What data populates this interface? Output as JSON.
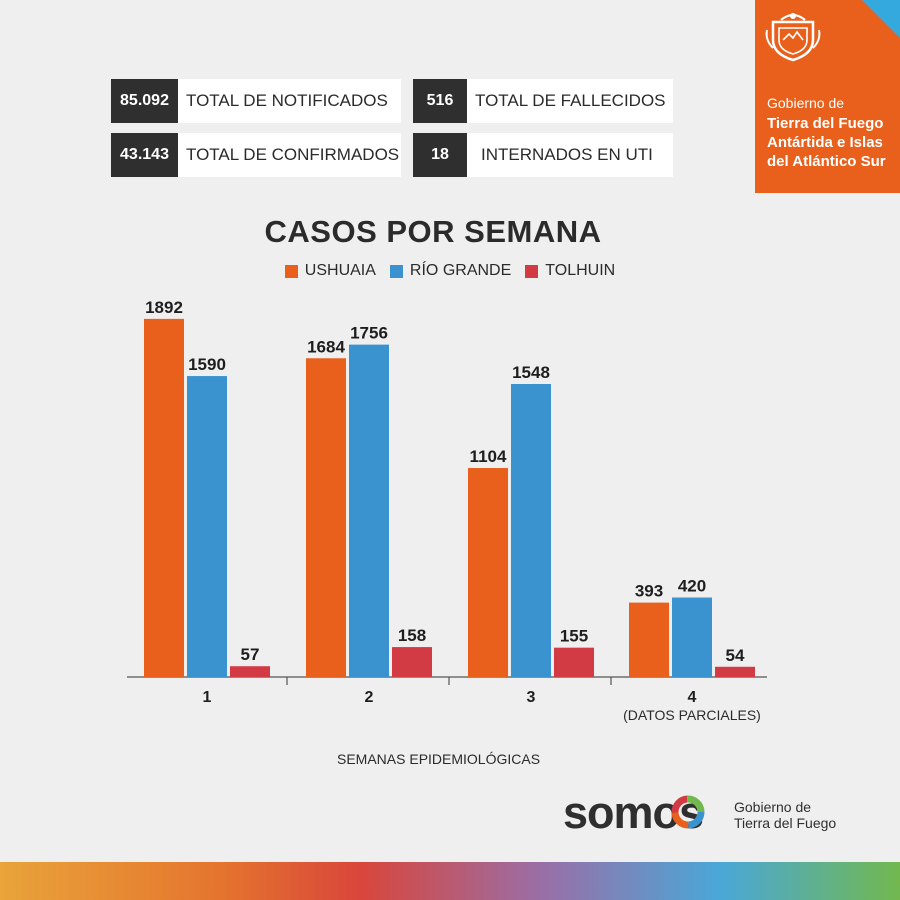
{
  "stats": [
    {
      "value": "85.092",
      "label": "TOTAL DE NOTIFICADOS"
    },
    {
      "value": "516",
      "label": "TOTAL DE FALLECIDOS"
    },
    {
      "value": "43.143",
      "label": "TOTAL DE CONFIRMADOS"
    },
    {
      "value": "18",
      "label": "INTERNADOS EN UTI"
    }
  ],
  "brand": {
    "line1": "Gobierno de",
    "line2": "Tierra del Fuego Antártida e Islas del Atlántico Sur",
    "color": "#e8601c"
  },
  "footer": {
    "logo_text": "somos",
    "sub_line1": "Gobierno de",
    "sub_line2": "Tierra del Fuego"
  },
  "chart_data": {
    "type": "bar",
    "title": "CASOS POR SEMANA",
    "xlabel": "SEMANAS EPIDEMIOLÓGICAS",
    "categories": [
      "1",
      "2",
      "3",
      "4"
    ],
    "category_notes": [
      "",
      "",
      "",
      "(DATOS PARCIALES)"
    ],
    "series": [
      {
        "name": "USHUAIA",
        "color": "#e8601c",
        "values": [
          1892,
          1684,
          1104,
          393
        ]
      },
      {
        "name": "RÍO GRANDE",
        "color": "#3a93cf",
        "values": [
          1590,
          1756,
          1548,
          420
        ]
      },
      {
        "name": "TOLHUIN",
        "color": "#d23a44",
        "values": [
          57,
          158,
          155,
          54
        ]
      }
    ],
    "ylim": [
      0,
      2000
    ],
    "grid": false,
    "legend": "top"
  }
}
